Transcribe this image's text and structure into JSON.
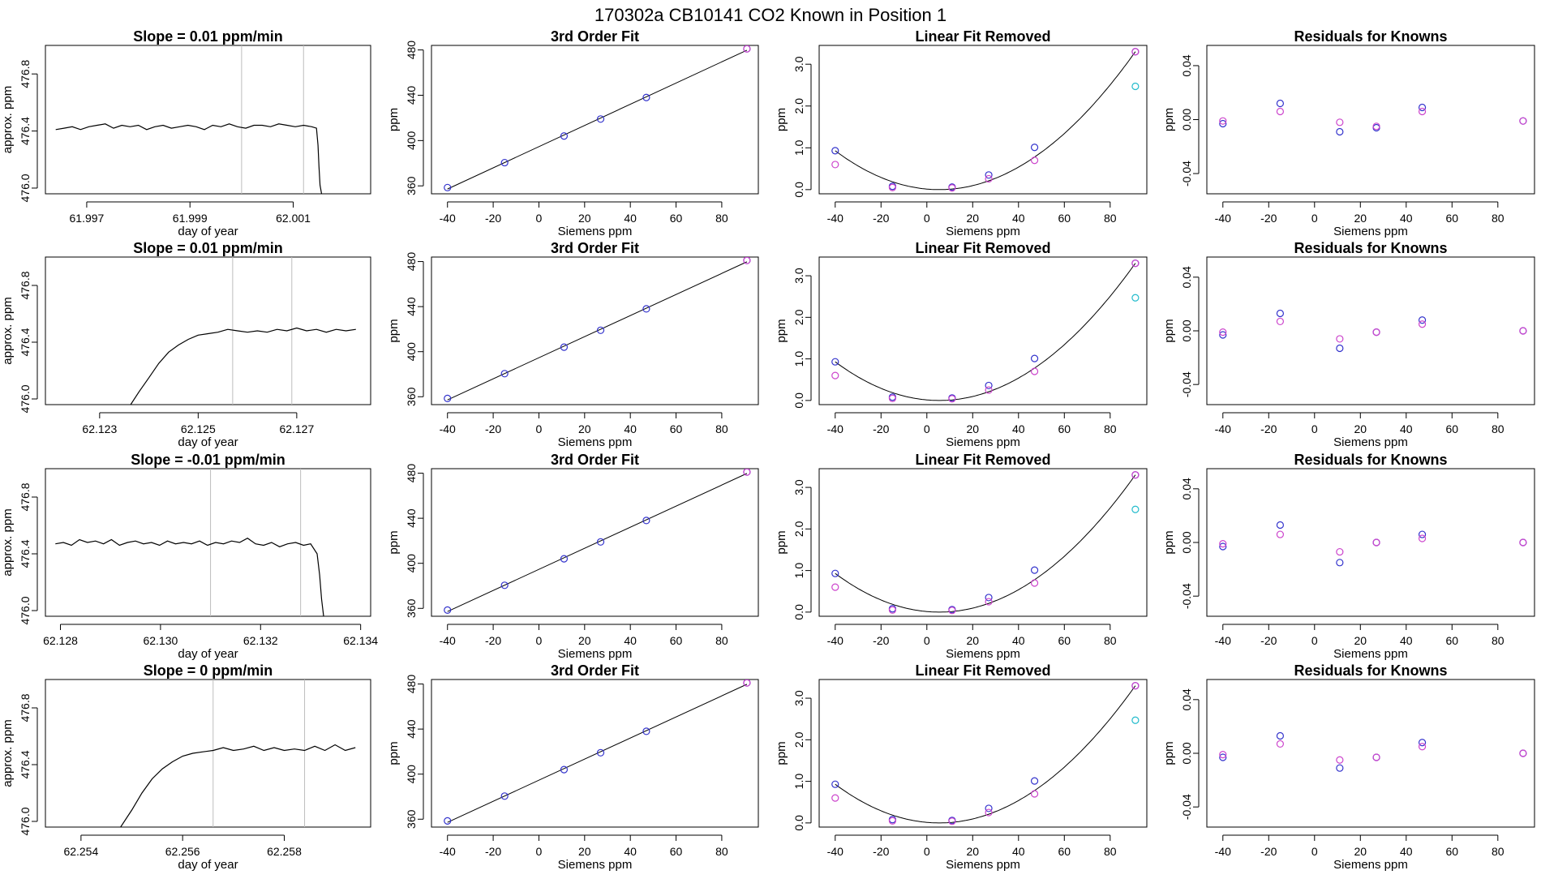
{
  "page": {
    "title": "170302a      CB10141    CO2 Known in Position  1"
  },
  "chart_data": [
    {
      "type": "line",
      "panel": "timeseries",
      "title": "Slope =  0.01  ppm/min",
      "xlabel": "day of year",
      "ylabel": "approx. ppm",
      "xlim": [
        61.9962,
        62.0025
      ],
      "ylim": [
        475.96,
        477.0
      ],
      "xticks": [
        "61.997",
        "61.999",
        "62.001"
      ],
      "yticks": [
        "476.0",
        "476.4",
        "476.8"
      ],
      "vlines": [
        62.0,
        62.0012
      ],
      "series": [
        {
          "x": [
            61.9964,
            61.99656,
            61.99672,
            61.99688,
            61.99704,
            61.9972,
            61.99736,
            61.99752,
            61.99768,
            61.99784,
            61.998,
            61.99816,
            61.99832,
            61.99848,
            61.99864,
            61.9988,
            61.99896,
            61.99912,
            61.99928,
            61.99944,
            61.9996,
            61.99976,
            61.99992,
            62.00008,
            62.00024,
            62.0004,
            62.00056,
            62.00072,
            62.00088,
            62.00104,
            62.0012,
            62.00136,
            62.00145,
            62.00148,
            62.0015,
            62.00152,
            62.00155
          ],
          "y": [
            476.41,
            476.42,
            476.43,
            476.41,
            476.43,
            476.44,
            476.45,
            476.42,
            476.44,
            476.43,
            476.44,
            476.41,
            476.43,
            476.44,
            476.42,
            476.43,
            476.44,
            476.43,
            476.41,
            476.44,
            476.43,
            476.45,
            476.43,
            476.42,
            476.44,
            476.44,
            476.43,
            476.45,
            476.44,
            476.43,
            476.44,
            476.43,
            476.42,
            476.3,
            476.15,
            476.02,
            475.96
          ]
        }
      ]
    },
    {
      "type": "scatter",
      "panel": "fit",
      "title": "3rd Order Fit",
      "xlabel": "Siemens ppm",
      "ylabel": "ppm",
      "xlim": [
        -47,
        96
      ],
      "ylim": [
        353,
        484
      ],
      "xticks": [
        "-40",
        "-20",
        "0",
        "20",
        "40",
        "60",
        "80"
      ],
      "yticks": [
        "360",
        "400",
        "440",
        "480"
      ],
      "series": [
        {
          "name": "knowns",
          "x": [
            -40,
            -15,
            11,
            27,
            47,
            91
          ],
          "y": [
            358.5,
            380.5,
            404,
            419,
            438,
            481
          ]
        }
      ]
    },
    {
      "type": "scatter",
      "panel": "linear-removed",
      "title": "Linear Fit Removed",
      "xlabel": "Siemens ppm",
      "ylabel": "ppm",
      "xlim": [
        -47,
        96
      ],
      "ylim": [
        -0.1,
        3.45
      ],
      "xticks": [
        "-40",
        "-20",
        "0",
        "20",
        "40",
        "60",
        "80"
      ],
      "yticks": [
        "0.0",
        "1.0",
        "2.0",
        "3.0"
      ],
      "series": [
        {
          "x": [
            -40,
            -15,
            11,
            27,
            47,
            91
          ],
          "y": [
            0.93,
            0.08,
            0.06,
            0.35,
            1.01,
            3.3
          ]
        },
        {
          "x": [
            -40,
            -15,
            11,
            27,
            47,
            91
          ],
          "y": [
            0.6,
            0.05,
            0.04,
            0.26,
            0.7,
            3.3
          ]
        },
        {
          "x": [
            91
          ],
          "y": [
            2.47
          ]
        }
      ]
    },
    {
      "type": "scatter",
      "panel": "residuals",
      "title": "Residuals for Knowns",
      "xlabel": "Siemens ppm",
      "ylabel": "ppm",
      "xlim": [
        -47,
        96
      ],
      "ylim": [
        -0.055,
        0.055
      ],
      "xticks": [
        "-40",
        "-20",
        "0",
        "20",
        "40",
        "60",
        "80"
      ],
      "yticks": [
        "-0.04",
        "0.00",
        "0.04"
      ],
      "series": [
        {
          "x": [
            -40,
            -15,
            11,
            27,
            47,
            91
          ],
          "y": [
            -0.003,
            0.012,
            -0.009,
            -0.006,
            0.009,
            -0.001
          ]
        },
        {
          "x": [
            -40,
            -15,
            11,
            27,
            47,
            91
          ],
          "y": [
            -0.001,
            0.006,
            -0.002,
            -0.005,
            0.006,
            -0.001
          ]
        }
      ]
    },
    {
      "type": "line",
      "panel": "timeseries",
      "title": "Slope =  0.01  ppm/min",
      "xlabel": "day of year",
      "ylabel": "approx. ppm",
      "xlim": [
        62.1219,
        62.1285
      ],
      "ylim": [
        475.96,
        477.0
      ],
      "xticks": [
        "62.123",
        "62.125",
        "62.127"
      ],
      "yticks": [
        "476.0",
        "476.4",
        "476.8"
      ],
      "vlines": [
        62.1257,
        62.1269
      ],
      "series": [
        {
          "x": [
            62.12363,
            62.1238,
            62.124,
            62.1242,
            62.1244,
            62.1246,
            62.1248,
            62.125,
            62.1252,
            62.1254,
            62.1256,
            62.1258,
            62.126,
            62.1262,
            62.1264,
            62.1266,
            62.1268,
            62.127,
            62.1272,
            62.1274,
            62.1276,
            62.1278,
            62.128,
            62.1282
          ],
          "y": [
            475.96,
            476.05,
            476.15,
            476.25,
            476.33,
            476.38,
            476.42,
            476.45,
            476.46,
            476.47,
            476.49,
            476.48,
            476.47,
            476.48,
            476.47,
            476.49,
            476.48,
            476.5,
            476.48,
            476.49,
            476.47,
            476.49,
            476.48,
            476.49
          ]
        }
      ]
    },
    {
      "type": "scatter",
      "panel": "fit",
      "title": "3rd Order Fit",
      "xlabel": "Siemens ppm",
      "ylabel": "ppm",
      "xlim": [
        -47,
        96
      ],
      "ylim": [
        353,
        484
      ],
      "xticks": [
        "-40",
        "-20",
        "0",
        "20",
        "40",
        "60",
        "80"
      ],
      "yticks": [
        "360",
        "400",
        "440",
        "480"
      ],
      "series": [
        {
          "name": "knowns",
          "x": [
            -40,
            -15,
            11,
            27,
            47,
            91
          ],
          "y": [
            358.5,
            380.5,
            404,
            419,
            438,
            481
          ]
        }
      ]
    },
    {
      "type": "scatter",
      "panel": "linear-removed",
      "title": "Linear Fit Removed",
      "xlabel": "Siemens ppm",
      "ylabel": "ppm",
      "xlim": [
        -47,
        96
      ],
      "ylim": [
        -0.1,
        3.45
      ],
      "xticks": [
        "-40",
        "-20",
        "0",
        "20",
        "40",
        "60",
        "80"
      ],
      "yticks": [
        "0.0",
        "1.0",
        "2.0",
        "3.0"
      ],
      "series": [
        {
          "x": [
            -40,
            -15,
            11,
            27,
            47,
            91
          ],
          "y": [
            0.93,
            0.08,
            0.06,
            0.36,
            1.01,
            3.3
          ]
        },
        {
          "x": [
            -40,
            -15,
            11,
            27,
            47,
            91
          ],
          "y": [
            0.6,
            0.05,
            0.04,
            0.25,
            0.7,
            3.3
          ]
        },
        {
          "x": [
            91
          ],
          "y": [
            2.47
          ]
        }
      ]
    },
    {
      "type": "scatter",
      "panel": "residuals",
      "title": "Residuals for Knowns",
      "xlabel": "Siemens ppm",
      "ylabel": "ppm",
      "xlim": [
        -47,
        96
      ],
      "ylim": [
        -0.055,
        0.055
      ],
      "xticks": [
        "-40",
        "-20",
        "0",
        "20",
        "40",
        "60",
        "80"
      ],
      "yticks": [
        "-0.04",
        "0.00",
        "0.04"
      ],
      "series": [
        {
          "x": [
            -40,
            -15,
            11,
            27,
            47,
            91
          ],
          "y": [
            -0.003,
            0.013,
            -0.013,
            -0.001,
            0.008,
            0.0
          ]
        },
        {
          "x": [
            -40,
            -15,
            11,
            27,
            47,
            91
          ],
          "y": [
            -0.001,
            0.007,
            -0.006,
            -0.001,
            0.005,
            0.0
          ]
        }
      ]
    },
    {
      "type": "line",
      "panel": "timeseries",
      "title": "Slope =  -0.01  ppm/min",
      "xlabel": "day of year",
      "ylabel": "approx. ppm",
      "xlim": [
        62.1277,
        62.1342
      ],
      "ylim": [
        475.96,
        477.0
      ],
      "xticks": [
        "62.128",
        "62.130",
        "62.132",
        "62.134"
      ],
      "yticks": [
        "476.0",
        "476.4",
        "476.8"
      ],
      "vlines": [
        62.131,
        62.1328
      ],
      "series": [
        {
          "x": [
            62.1279,
            62.12806,
            62.12822,
            62.12838,
            62.12854,
            62.1287,
            62.12886,
            62.12902,
            62.12918,
            62.12934,
            62.1295,
            62.12966,
            62.12982,
            62.12998,
            62.13014,
            62.1303,
            62.13046,
            62.13062,
            62.13078,
            62.13094,
            62.1311,
            62.13126,
            62.13142,
            62.13158,
            62.13174,
            62.1319,
            62.13206,
            62.13222,
            62.13238,
            62.13254,
            62.1327,
            62.13286,
            62.133,
            62.13313,
            62.13318,
            62.13322,
            62.13326
          ],
          "y": [
            476.47,
            476.48,
            476.46,
            476.5,
            476.48,
            476.49,
            476.47,
            476.5,
            476.46,
            476.48,
            476.49,
            476.47,
            476.48,
            476.46,
            476.49,
            476.47,
            476.48,
            476.47,
            476.49,
            476.46,
            476.48,
            476.47,
            476.49,
            476.48,
            476.51,
            476.47,
            476.46,
            476.48,
            476.45,
            476.47,
            476.48,
            476.46,
            476.47,
            476.4,
            476.25,
            476.08,
            475.96
          ]
        }
      ]
    },
    {
      "type": "scatter",
      "panel": "fit",
      "title": "3rd Order Fit",
      "xlabel": "Siemens ppm",
      "ylabel": "ppm",
      "xlim": [
        -47,
        96
      ],
      "ylim": [
        353,
        484
      ],
      "xticks": [
        "-40",
        "-20",
        "0",
        "20",
        "40",
        "60",
        "80"
      ],
      "yticks": [
        "360",
        "400",
        "440",
        "480"
      ],
      "series": [
        {
          "name": "knowns",
          "x": [
            -40,
            -15,
            11,
            27,
            47,
            91
          ],
          "y": [
            358.5,
            380.5,
            404,
            419,
            438,
            481
          ]
        }
      ]
    },
    {
      "type": "scatter",
      "panel": "linear-removed",
      "title": "Linear Fit Removed",
      "xlabel": "Siemens ppm",
      "ylabel": "ppm",
      "xlim": [
        -47,
        96
      ],
      "ylim": [
        -0.1,
        3.45
      ],
      "xticks": [
        "-40",
        "-20",
        "0",
        "20",
        "40",
        "60",
        "80"
      ],
      "yticks": [
        "0.0",
        "1.0",
        "2.0",
        "3.0"
      ],
      "series": [
        {
          "x": [
            -40,
            -15,
            11,
            27,
            47,
            91
          ],
          "y": [
            0.93,
            0.08,
            0.06,
            0.35,
            1.01,
            3.3
          ]
        },
        {
          "x": [
            -40,
            -15,
            11,
            27,
            47,
            91
          ],
          "y": [
            0.6,
            0.05,
            0.04,
            0.25,
            0.7,
            3.3
          ]
        },
        {
          "x": [
            91
          ],
          "y": [
            2.47
          ]
        }
      ]
    },
    {
      "type": "scatter",
      "panel": "residuals",
      "title": "Residuals for Knowns",
      "xlabel": "Siemens ppm",
      "ylabel": "ppm",
      "xlim": [
        -47,
        96
      ],
      "ylim": [
        -0.055,
        0.055
      ],
      "xticks": [
        "-40",
        "-20",
        "0",
        "20",
        "40",
        "60",
        "80"
      ],
      "yticks": [
        "-0.04",
        "0.00",
        "0.04"
      ],
      "series": [
        {
          "x": [
            -40,
            -15,
            11,
            27,
            47,
            91
          ],
          "y": [
            -0.003,
            0.013,
            -0.015,
            0.0,
            0.006,
            0.0
          ]
        },
        {
          "x": [
            -40,
            -15,
            11,
            27,
            47,
            91
          ],
          "y": [
            -0.001,
            0.006,
            -0.007,
            0.0,
            0.003,
            0.0
          ]
        }
      ]
    },
    {
      "type": "line",
      "panel": "timeseries",
      "title": "Slope =  0  ppm/min",
      "xlabel": "day of year",
      "ylabel": "approx. ppm",
      "xlim": [
        62.2533,
        62.2597
      ],
      "ylim": [
        475.96,
        477.0
      ],
      "xticks": [
        "62.254",
        "62.256",
        "62.258"
      ],
      "yticks": [
        "476.0",
        "476.4",
        "476.8"
      ],
      "vlines": [
        62.2566,
        62.2584
      ],
      "series": [
        {
          "x": [
            62.25478,
            62.255,
            62.2552,
            62.2554,
            62.2556,
            62.2558,
            62.256,
            62.2562,
            62.2564,
            62.2566,
            62.2568,
            62.257,
            62.2572,
            62.2574,
            62.2576,
            62.2578,
            62.258,
            62.2582,
            62.2584,
            62.2586,
            62.2588,
            62.259,
            62.2592,
            62.2594
          ],
          "y": [
            475.96,
            476.08,
            476.2,
            476.3,
            476.37,
            476.42,
            476.46,
            476.48,
            476.49,
            476.5,
            476.52,
            476.5,
            476.51,
            476.53,
            476.5,
            476.52,
            476.5,
            476.51,
            476.5,
            476.53,
            476.5,
            476.54,
            476.5,
            476.52
          ]
        }
      ]
    },
    {
      "type": "scatter",
      "panel": "fit",
      "title": "3rd Order Fit",
      "xlabel": "Siemens ppm",
      "ylabel": "ppm",
      "xlim": [
        -47,
        96
      ],
      "ylim": [
        353,
        484
      ],
      "xticks": [
        "-40",
        "-20",
        "0",
        "20",
        "40",
        "60",
        "80"
      ],
      "yticks": [
        "360",
        "400",
        "440",
        "480"
      ],
      "series": [
        {
          "name": "knowns",
          "x": [
            -40,
            -15,
            11,
            27,
            47,
            91
          ],
          "y": [
            358.5,
            380.5,
            404,
            419,
            438,
            481
          ]
        }
      ]
    },
    {
      "type": "scatter",
      "panel": "linear-removed",
      "title": "Linear Fit Removed",
      "xlabel": "Siemens ppm",
      "ylabel": "ppm",
      "xlim": [
        -47,
        96
      ],
      "ylim": [
        -0.1,
        3.45
      ],
      "xticks": [
        "-40",
        "-20",
        "0",
        "20",
        "40",
        "60",
        "80"
      ],
      "yticks": [
        "0.0",
        "1.0",
        "2.0",
        "3.0"
      ],
      "series": [
        {
          "x": [
            -40,
            -15,
            11,
            27,
            47,
            91
          ],
          "y": [
            0.93,
            0.08,
            0.06,
            0.35,
            1.01,
            3.3
          ]
        },
        {
          "x": [
            -40,
            -15,
            11,
            27,
            47,
            91
          ],
          "y": [
            0.6,
            0.05,
            0.04,
            0.25,
            0.7,
            3.3
          ]
        },
        {
          "x": [
            91
          ],
          "y": [
            2.47
          ]
        }
      ]
    },
    {
      "type": "scatter",
      "panel": "residuals",
      "title": "Residuals for Knowns",
      "xlabel": "Siemens ppm",
      "ylabel": "ppm",
      "xlim": [
        -47,
        96
      ],
      "ylim": [
        -0.055,
        0.055
      ],
      "xticks": [
        "-40",
        "-20",
        "0",
        "20",
        "40",
        "60",
        "80"
      ],
      "yticks": [
        "-0.04",
        "0.00",
        "0.04"
      ],
      "series": [
        {
          "x": [
            -40,
            -15,
            11,
            27,
            47,
            91
          ],
          "y": [
            -0.003,
            0.013,
            -0.011,
            -0.003,
            0.008,
            0.0
          ]
        },
        {
          "x": [
            -40,
            -15,
            11,
            27,
            47,
            91
          ],
          "y": [
            -0.001,
            0.007,
            -0.005,
            -0.003,
            0.005,
            0.0
          ]
        }
      ]
    }
  ],
  "colors": {
    "line": "#000000",
    "refline": "#bdbdbd",
    "blue": "#3333cc",
    "magenta": "#cc44cc",
    "cyan": "#22bbcc",
    "red": "#dd3333"
  }
}
